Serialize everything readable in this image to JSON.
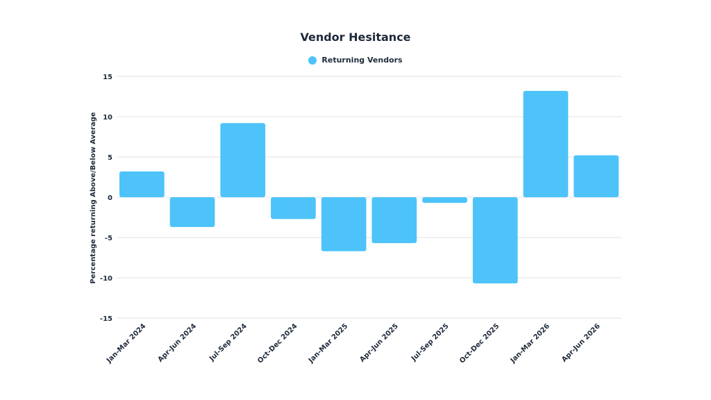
{
  "chart_data": {
    "type": "bar",
    "title": "Vendor Hesitance",
    "xlabel": "",
    "ylabel": "Percentage returning Above/Below Average",
    "categories": [
      "Jan-Mar 2024",
      "Apr-Jun 2024",
      "Jul-Sep 2024",
      "Oct-Dec 2024",
      "Jan-Mar 2025",
      "Apr-Jun 2025",
      "Jul-Sep 2025",
      "Oct-Dec 2025",
      "Jan-Mar 2026",
      "Apr-Jun 2026"
    ],
    "series": [
      {
        "name": "Returning Vendors",
        "color": "#4dc3fa",
        "values": [
          3.2,
          -3.7,
          9.2,
          -2.7,
          -6.7,
          -5.7,
          -0.7,
          -10.7,
          13.2,
          5.2
        ]
      }
    ],
    "ylim": [
      -15,
      15
    ],
    "yticks": [
      15,
      10,
      5,
      0,
      -5,
      -10,
      -15
    ],
    "grid": true,
    "legend": "top-center"
  }
}
